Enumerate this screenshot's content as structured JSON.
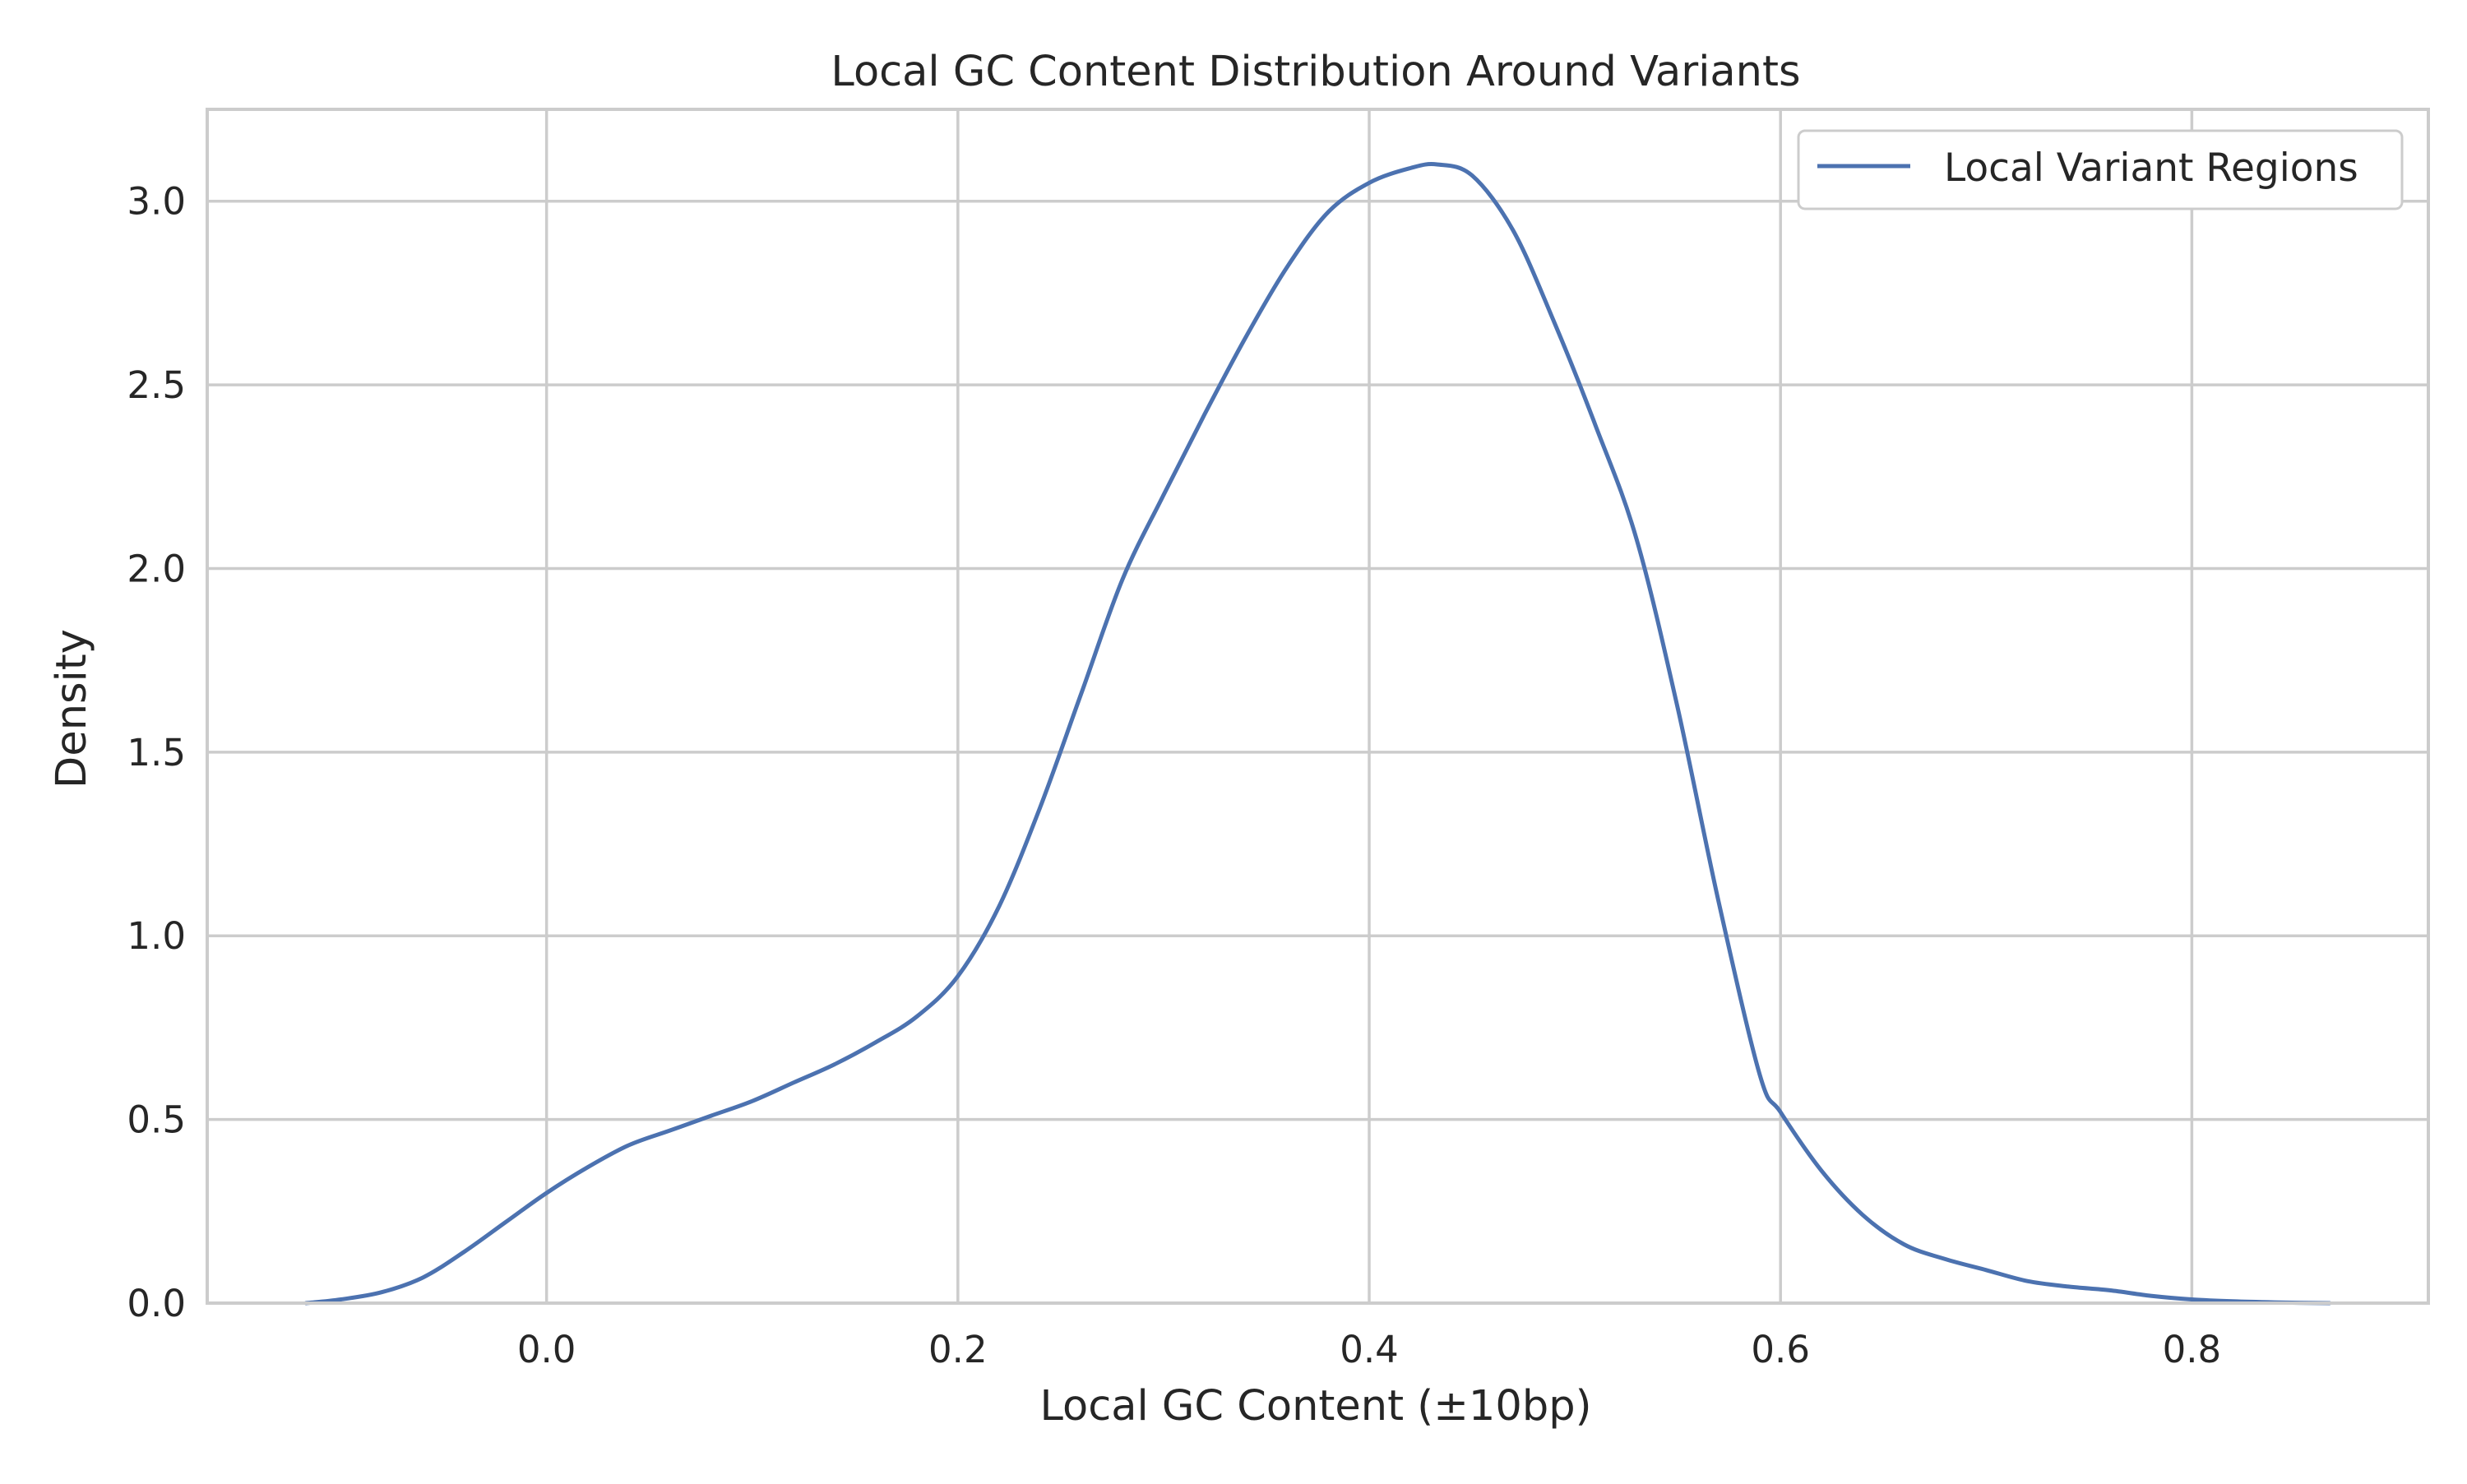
{
  "chart_data": {
    "type": "line",
    "title": "Local GC Content Distribution Around Variants",
    "xlabel": "Local GC Content (±10bp)",
    "ylabel": "Density",
    "xlim": [
      -0.165,
      0.915
    ],
    "ylim": [
      0,
      3.25
    ],
    "xticks": [
      0.0,
      0.2,
      0.4,
      0.6,
      0.8
    ],
    "xtick_labels": [
      "0.0",
      "0.2",
      "0.4",
      "0.6",
      "0.8"
    ],
    "yticks": [
      0.0,
      0.5,
      1.0,
      1.5,
      2.0,
      2.5,
      3.0
    ],
    "ytick_labels": [
      "0.0",
      "0.5",
      "1.0",
      "1.5",
      "2.0",
      "2.5",
      "3.0"
    ],
    "grid": true,
    "legend_position": "top-right",
    "series": [
      {
        "name": "Local Variant Regions",
        "color": "#4c72b0",
        "x": [
          -0.117,
          -0.1,
          -0.08,
          -0.06,
          -0.04,
          -0.02,
          0.0,
          0.02,
          0.04,
          0.06,
          0.08,
          0.1,
          0.12,
          0.14,
          0.16,
          0.18,
          0.2,
          0.22,
          0.24,
          0.26,
          0.28,
          0.3,
          0.32,
          0.34,
          0.36,
          0.38,
          0.4,
          0.42,
          0.433,
          0.45,
          0.47,
          0.49,
          0.51,
          0.53,
          0.55,
          0.57,
          0.59,
          0.6,
          0.62,
          0.64,
          0.66,
          0.68,
          0.7,
          0.72,
          0.74,
          0.76,
          0.78,
          0.8,
          0.82,
          0.84,
          0.867
        ],
        "y": [
          0.0,
          0.01,
          0.03,
          0.07,
          0.14,
          0.22,
          0.3,
          0.37,
          0.43,
          0.47,
          0.51,
          0.55,
          0.6,
          0.65,
          0.71,
          0.78,
          0.89,
          1.08,
          1.35,
          1.66,
          1.97,
          2.2,
          2.42,
          2.63,
          2.82,
          2.97,
          3.05,
          3.09,
          3.1,
          3.07,
          2.92,
          2.67,
          2.39,
          2.08,
          1.62,
          1.09,
          0.62,
          0.52,
          0.36,
          0.24,
          0.16,
          0.12,
          0.09,
          0.06,
          0.045,
          0.035,
          0.02,
          0.01,
          0.005,
          0.002,
          0.0
        ]
      }
    ]
  }
}
